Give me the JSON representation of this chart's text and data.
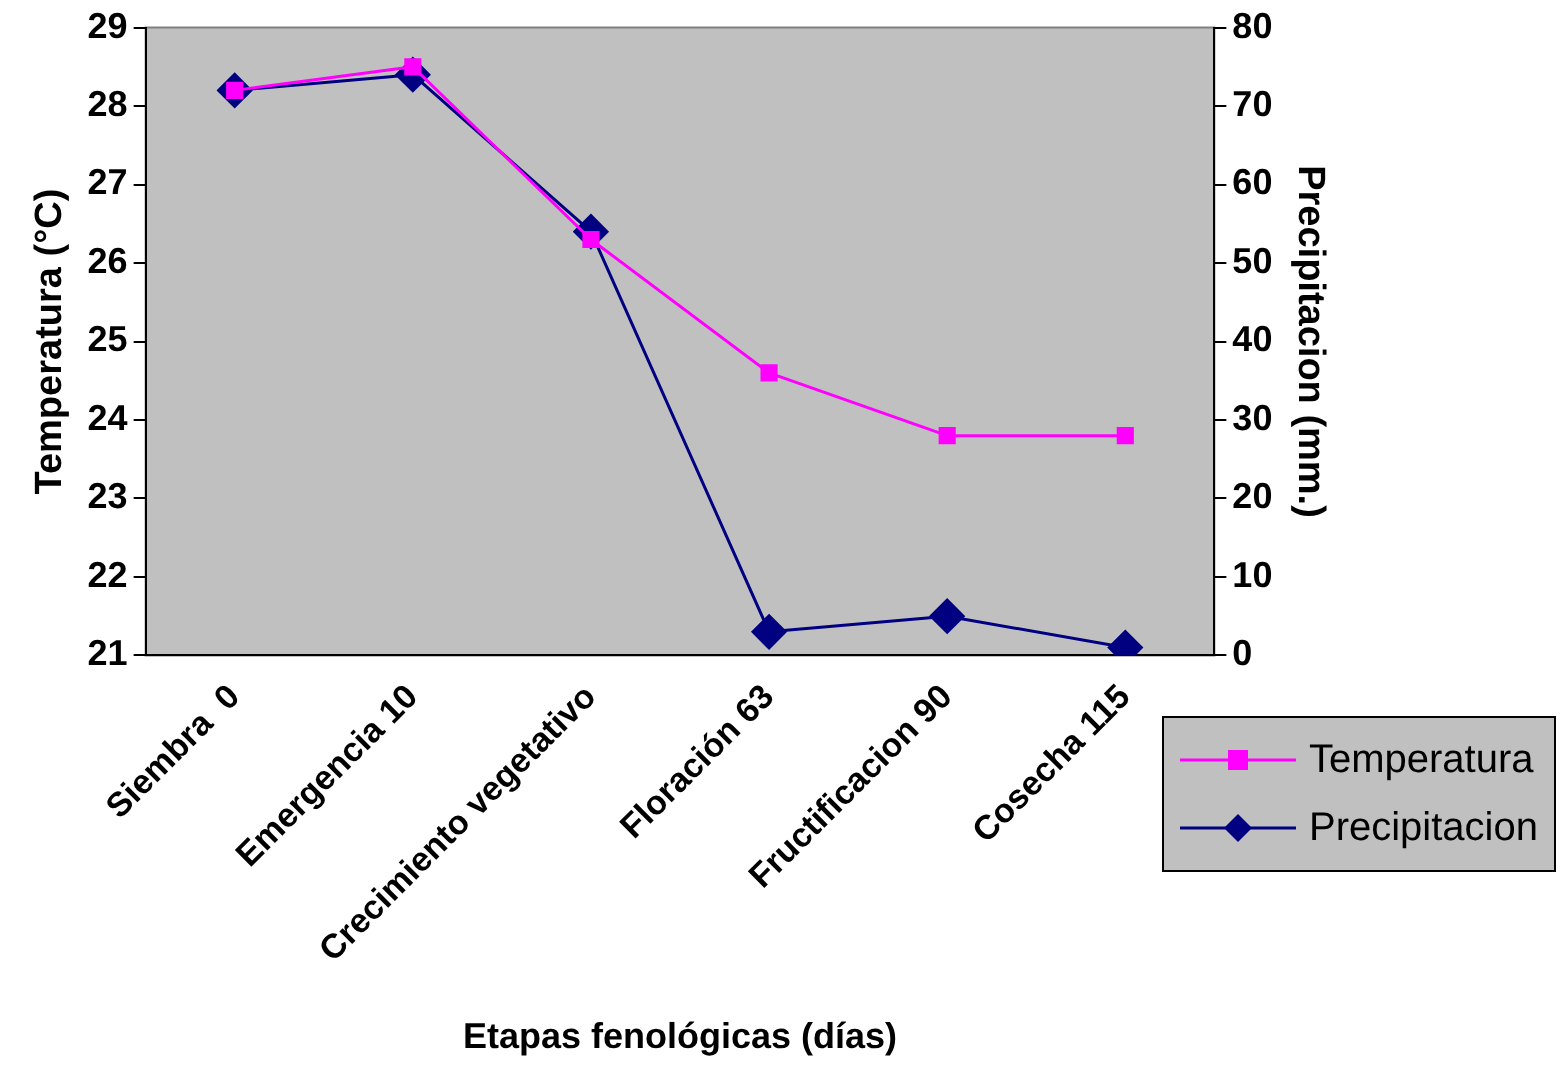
{
  "chart_data": {
    "type": "line",
    "xlabel": "Etapas fenológicas (días)",
    "ylabel": "Temperatura (°C)",
    "y2label": "Precipitacion (mm.)",
    "categories": [
      "Siembra  0",
      "Emergencia 10",
      "Crecimiento vegetativo",
      "Floración 63",
      "Fructificacion 90",
      "Cosecha 115"
    ],
    "series": [
      {
        "name": "Temperatura",
        "color": "#ff00ff",
        "marker": "square",
        "values": [
          28.2,
          28.5,
          26.3,
          24.6,
          23.8,
          23.8
        ]
      },
      {
        "name": "Precipitacion",
        "color": "#000080",
        "marker": "diamond",
        "axis": "y2",
        "values": [
          72,
          74,
          54,
          3,
          5,
          1
        ]
      }
    ],
    "ylim": [
      21,
      29
    ],
    "yticks": [
      21,
      22,
      23,
      24,
      25,
      26,
      27,
      28,
      29
    ],
    "y2lim": [
      0,
      80
    ],
    "y2ticks": [
      0,
      10,
      20,
      30,
      40,
      50,
      60,
      70,
      80
    ],
    "legend": "bottom right",
    "grid": false
  }
}
